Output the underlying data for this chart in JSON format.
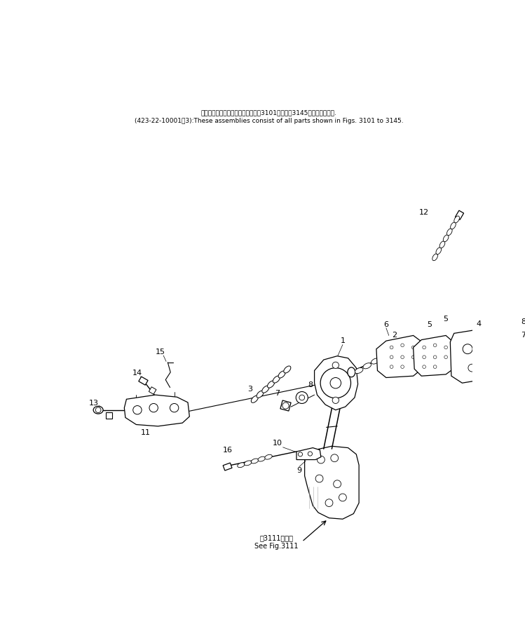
{
  "background_color": "#ffffff",
  "fig_width": 7.49,
  "fig_height": 9.07,
  "dpi": 100,
  "header_line1": "これらのアセンブリの構成部品は第3101図から第3145図まで含みます.",
  "header_line2": "(423-22-10001～3):These assemblies consist of all parts shown in Figs. 3101 to 3145.",
  "footer_line1": "第3111図参照",
  "footer_line2": "See Fig.3111"
}
